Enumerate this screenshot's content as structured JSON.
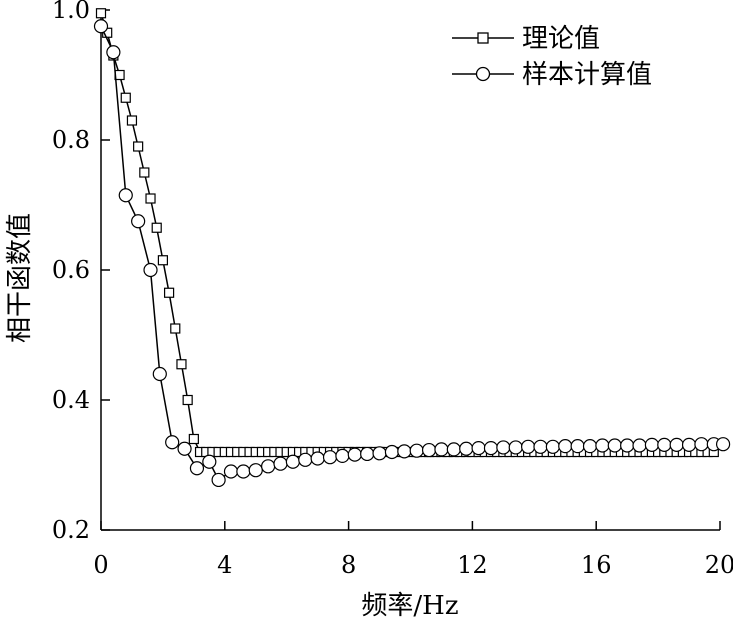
{
  "chart_data": {
    "type": "line",
    "title": "",
    "xlabel": "频率/Hz",
    "ylabel": "相干函数值",
    "xlim": [
      0,
      20
    ],
    "ylim": [
      0.2,
      1.0
    ],
    "xticks": [
      0,
      4,
      8,
      12,
      16,
      20
    ],
    "xtick_labels": [
      "0",
      "4",
      "8",
      "12",
      "16",
      "20"
    ],
    "yticks": [
      0.2,
      0.4,
      0.6,
      0.8,
      1.0
    ],
    "ytick_labels": [
      "0.2",
      "0.4",
      "0.6",
      "0.8",
      "1.0"
    ],
    "grid": false,
    "legend_position": "top-right",
    "series": [
      {
        "name": "理论值",
        "marker": "square",
        "x": [
          0,
          0.2,
          0.4,
          0.6,
          0.8,
          1.0,
          1.2,
          1.4,
          1.6,
          1.8,
          2.0,
          2.2,
          2.4,
          2.6,
          2.8,
          3.0,
          3.2,
          3.4,
          3.6,
          3.8,
          4.0,
          4.2,
          4.4,
          4.6,
          4.8,
          5.0,
          5.2,
          5.4,
          5.6,
          5.8,
          6.0,
          6.2,
          6.4,
          6.6,
          6.8,
          7.0,
          7.2,
          7.4,
          7.6,
          7.8,
          8.0,
          8.2,
          8.4,
          8.6,
          8.8,
          9.0,
          9.2,
          9.4,
          9.6,
          9.8,
          10.0,
          10.2,
          10.4,
          10.6,
          10.8,
          11.0,
          11.2,
          11.4,
          11.6,
          11.8,
          12.0,
          12.2,
          12.4,
          12.6,
          12.8,
          13.0,
          13.2,
          13.4,
          13.6,
          13.8,
          14.0,
          14.2,
          14.4,
          14.6,
          14.8,
          15.0,
          15.2,
          15.4,
          15.6,
          15.8,
          16.0,
          16.2,
          16.4,
          16.6,
          16.8,
          17.0,
          17.2,
          17.4,
          17.6,
          17.8,
          18.0,
          18.2,
          18.4,
          18.6,
          18.8,
          19.0,
          19.2,
          19.4,
          19.6,
          19.8
        ],
        "y": [
          0.995,
          0.965,
          0.93,
          0.9,
          0.865,
          0.83,
          0.79,
          0.75,
          0.71,
          0.665,
          0.615,
          0.565,
          0.51,
          0.455,
          0.4,
          0.34,
          0.32,
          0.32,
          0.32,
          0.32,
          0.32,
          0.32,
          0.32,
          0.32,
          0.32,
          0.32,
          0.32,
          0.32,
          0.32,
          0.32,
          0.32,
          0.32,
          0.32,
          0.32,
          0.32,
          0.32,
          0.32,
          0.32,
          0.32,
          0.32,
          0.32,
          0.32,
          0.32,
          0.32,
          0.32,
          0.32,
          0.32,
          0.32,
          0.32,
          0.32,
          0.32,
          0.32,
          0.32,
          0.32,
          0.32,
          0.32,
          0.32,
          0.32,
          0.32,
          0.32,
          0.32,
          0.32,
          0.32,
          0.32,
          0.32,
          0.32,
          0.32,
          0.32,
          0.32,
          0.32,
          0.32,
          0.32,
          0.32,
          0.32,
          0.32,
          0.32,
          0.32,
          0.32,
          0.32,
          0.32,
          0.32,
          0.32,
          0.32,
          0.32,
          0.32,
          0.32,
          0.32,
          0.32,
          0.32,
          0.32,
          0.32,
          0.32,
          0.32,
          0.32,
          0.32,
          0.32,
          0.32,
          0.32,
          0.32,
          0.32
        ]
      },
      {
        "name": "样本计算值",
        "marker": "circle",
        "x": [
          0,
          0.4,
          0.8,
          1.2,
          1.6,
          1.9,
          2.3,
          2.7,
          3.1,
          3.5,
          3.8,
          4.2,
          4.6,
          5.0,
          5.4,
          5.8,
          6.2,
          6.6,
          7.0,
          7.4,
          7.8,
          8.2,
          8.6,
          9.0,
          9.4,
          9.8,
          10.2,
          10.6,
          11.0,
          11.4,
          11.8,
          12.2,
          12.6,
          13.0,
          13.4,
          13.8,
          14.2,
          14.6,
          15.0,
          15.4,
          15.8,
          16.2,
          16.6,
          17.0,
          17.4,
          17.8,
          18.2,
          18.6,
          19.0,
          19.4,
          19.8,
          20.1
        ],
        "y": [
          0.975,
          0.935,
          0.715,
          0.675,
          0.6,
          0.44,
          0.335,
          0.325,
          0.295,
          0.305,
          0.277,
          0.29,
          0.29,
          0.292,
          0.298,
          0.302,
          0.305,
          0.308,
          0.31,
          0.312,
          0.314,
          0.316,
          0.317,
          0.318,
          0.32,
          0.321,
          0.322,
          0.323,
          0.324,
          0.324,
          0.325,
          0.326,
          0.326,
          0.327,
          0.327,
          0.328,
          0.328,
          0.328,
          0.329,
          0.329,
          0.329,
          0.33,
          0.33,
          0.33,
          0.33,
          0.331,
          0.331,
          0.331,
          0.331,
          0.332,
          0.332,
          0.332
        ]
      }
    ]
  }
}
